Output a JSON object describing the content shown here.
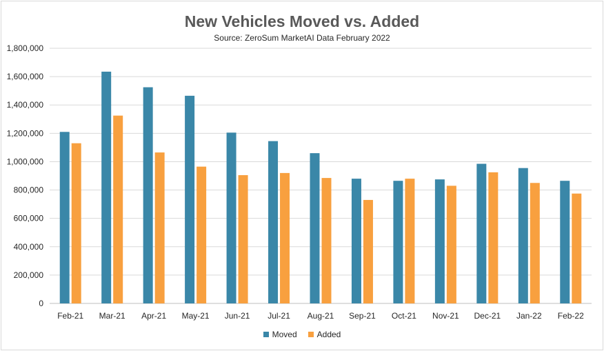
{
  "chart_data": {
    "type": "bar",
    "title": "New Vehicles Moved vs. Added",
    "subtitle": "Source: ZeroSum MarketAI Data February 2022",
    "categories": [
      "Feb-21",
      "Mar-21",
      "Apr-21",
      "May-21",
      "Jun-21",
      "Jul-21",
      "Aug-21",
      "Sep-21",
      "Oct-21",
      "Nov-21",
      "Dec-21",
      "Jan-22",
      "Feb-22"
    ],
    "series": [
      {
        "name": "Moved",
        "color": "#3a87a8",
        "values": [
          1210000,
          1635000,
          1525000,
          1465000,
          1205000,
          1145000,
          1060000,
          880000,
          865000,
          875000,
          985000,
          955000,
          865000
        ]
      },
      {
        "name": "Added",
        "color": "#f8a03f",
        "values": [
          1130000,
          1325000,
          1065000,
          965000,
          905000,
          920000,
          885000,
          730000,
          880000,
          830000,
          925000,
          850000,
          775000
        ]
      }
    ],
    "ylim": [
      0,
      1800000
    ],
    "yticks": [
      0,
      200000,
      400000,
      600000,
      800000,
      1000000,
      1200000,
      1400000,
      1600000,
      1800000
    ],
    "ytick_labels": [
      "0",
      "200,000",
      "400,000",
      "600,000",
      "800,000",
      "1,000,000",
      "1,200,000",
      "1,400,000",
      "1,600,000",
      "1,800,000"
    ],
    "grid": true,
    "legend": "bottom"
  }
}
